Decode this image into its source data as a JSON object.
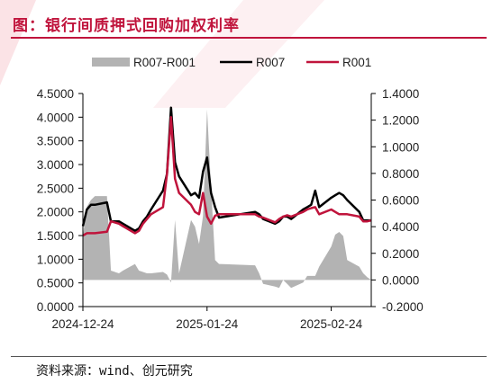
{
  "header": {
    "title": "图：银行间质押式回购加权利率"
  },
  "footer": {
    "source": "资料来源：wind、创元研究"
  },
  "colors": {
    "accent": "#c0143c",
    "spread": "#b3b3b3",
    "r007": "#000000",
    "r001": "#c0143c"
  },
  "chart_data": {
    "type": "line",
    "legend_position": "top",
    "grid": false,
    "x_start": "2024-12-24",
    "x_end": "2025-03-06",
    "x_ticks": [
      "2024-12-24",
      "2025-01-24",
      "2025-02-24"
    ],
    "left_axis": {
      "ylim": [
        0,
        4.5
      ],
      "ticks": [
        "0.0000",
        "0.5000",
        "1.0000",
        "1.5000",
        "2.0000",
        "2.5000",
        "3.0000",
        "3.5000",
        "4.0000",
        "4.5000"
      ]
    },
    "right_axis": {
      "ylim": [
        -0.2,
        1.4
      ],
      "ticks": [
        "-0.2000",
        "0.0000",
        "0.2000",
        "0.4000",
        "0.6000",
        "0.8000",
        "1.0000",
        "1.2000",
        "1.4000"
      ]
    },
    "series": [
      {
        "name": "R007-R001",
        "type": "area",
        "axis": "right",
        "dates": [
          "2024-12-24",
          "2024-12-25",
          "2024-12-26",
          "2024-12-27",
          "2024-12-30",
          "2024-12-31",
          "2025-01-02",
          "2025-01-03",
          "2025-01-06",
          "2025-01-07",
          "2025-01-08",
          "2025-01-09",
          "2025-01-10",
          "2025-01-13",
          "2025-01-14",
          "2025-01-15",
          "2025-01-16",
          "2025-01-17",
          "2025-01-20",
          "2025-01-21",
          "2025-01-22",
          "2025-01-23",
          "2025-01-24",
          "2025-01-25",
          "2025-01-26",
          "2025-01-27",
          "2025-02-05",
          "2025-02-06",
          "2025-02-07",
          "2025-02-10",
          "2025-02-11",
          "2025-02-12",
          "2025-02-13",
          "2025-02-14",
          "2025-02-17",
          "2025-02-18",
          "2025-02-19",
          "2025-02-20",
          "2025-02-21",
          "2025-02-24",
          "2025-02-25",
          "2025-02-26",
          "2025-02-27",
          "2025-02-28",
          "2025-03-03",
          "2025-03-04",
          "2025-03-05",
          "2025-03-06"
        ],
        "values": [
          0.33,
          0.55,
          0.6,
          0.63,
          0.63,
          0.07,
          0.05,
          0.07,
          0.12,
          0.07,
          0.06,
          0.05,
          0.05,
          0.06,
          0.04,
          -0.02,
          0.45,
          0.05,
          0.45,
          0.4,
          0.27,
          0.48,
          1.28,
          0.7,
          0.15,
          0.12,
          0.11,
          0.05,
          -0.03,
          -0.05,
          -0.06,
          0.0,
          -0.03,
          -0.06,
          -0.02,
          0.03,
          0.03,
          0.03,
          0.1,
          0.25,
          0.34,
          0.36,
          0.33,
          0.15,
          0.1,
          0.05,
          0.02,
          0.0
        ]
      },
      {
        "name": "R007",
        "type": "line",
        "axis": "left",
        "dates": [
          "2024-12-24",
          "2024-12-25",
          "2024-12-26",
          "2024-12-27",
          "2024-12-30",
          "2024-12-31",
          "2025-01-02",
          "2025-01-03",
          "2025-01-06",
          "2025-01-07",
          "2025-01-08",
          "2025-01-09",
          "2025-01-10",
          "2025-01-13",
          "2025-01-14",
          "2025-01-15",
          "2025-01-16",
          "2025-01-17",
          "2025-01-20",
          "2025-01-21",
          "2025-01-22",
          "2025-01-23",
          "2025-01-24",
          "2025-01-25",
          "2025-01-26",
          "2025-01-27",
          "2025-02-05",
          "2025-02-06",
          "2025-02-07",
          "2025-02-10",
          "2025-02-11",
          "2025-02-12",
          "2025-02-13",
          "2025-02-14",
          "2025-02-17",
          "2025-02-18",
          "2025-02-19",
          "2025-02-20",
          "2025-02-21",
          "2025-02-24",
          "2025-02-25",
          "2025-02-26",
          "2025-02-27",
          "2025-02-28",
          "2025-03-03",
          "2025-03-04",
          "2025-03-05",
          "2025-03-06"
        ],
        "values": [
          1.7,
          2.05,
          2.15,
          2.15,
          2.2,
          1.8,
          1.8,
          1.75,
          1.6,
          1.65,
          1.8,
          1.9,
          2.05,
          2.45,
          2.8,
          4.2,
          3.05,
          2.75,
          2.35,
          2.4,
          2.3,
          2.85,
          3.15,
          2.4,
          2.1,
          1.88,
          2.0,
          1.95,
          1.85,
          1.75,
          1.8,
          1.9,
          1.9,
          1.85,
          2.05,
          2.1,
          2.15,
          2.45,
          2.1,
          2.3,
          2.35,
          2.4,
          2.35,
          2.25,
          2.0,
          1.82,
          1.82,
          1.82
        ]
      },
      {
        "name": "R001",
        "type": "line",
        "axis": "left",
        "dates": [
          "2024-12-24",
          "2024-12-25",
          "2024-12-26",
          "2024-12-27",
          "2024-12-30",
          "2024-12-31",
          "2025-01-02",
          "2025-01-03",
          "2025-01-06",
          "2025-01-07",
          "2025-01-08",
          "2025-01-09",
          "2025-01-10",
          "2025-01-13",
          "2025-01-14",
          "2025-01-15",
          "2025-01-16",
          "2025-01-17",
          "2025-01-20",
          "2025-01-21",
          "2025-01-22",
          "2025-01-23",
          "2025-01-24",
          "2025-01-25",
          "2025-01-26",
          "2025-01-27",
          "2025-02-05",
          "2025-02-06",
          "2025-02-07",
          "2025-02-10",
          "2025-02-11",
          "2025-02-12",
          "2025-02-13",
          "2025-02-14",
          "2025-02-17",
          "2025-02-18",
          "2025-02-19",
          "2025-02-20",
          "2025-02-21",
          "2025-02-24",
          "2025-02-25",
          "2025-02-26",
          "2025-02-27",
          "2025-02-28",
          "2025-03-03",
          "2025-03-04",
          "2025-03-05",
          "2025-03-06"
        ],
        "values": [
          1.5,
          1.55,
          1.55,
          1.55,
          1.58,
          1.8,
          1.75,
          1.7,
          1.55,
          1.6,
          1.75,
          1.85,
          1.95,
          2.1,
          2.8,
          4.0,
          2.7,
          2.4,
          2.15,
          2.0,
          1.95,
          2.4,
          1.9,
          1.75,
          1.92,
          1.95,
          1.95,
          1.9,
          1.88,
          1.78,
          1.85,
          1.9,
          1.93,
          1.9,
          2.0,
          2.05,
          2.08,
          2.1,
          1.95,
          2.05,
          2.0,
          1.95,
          1.95,
          1.95,
          1.9,
          1.8,
          1.8,
          1.82
        ]
      }
    ]
  }
}
